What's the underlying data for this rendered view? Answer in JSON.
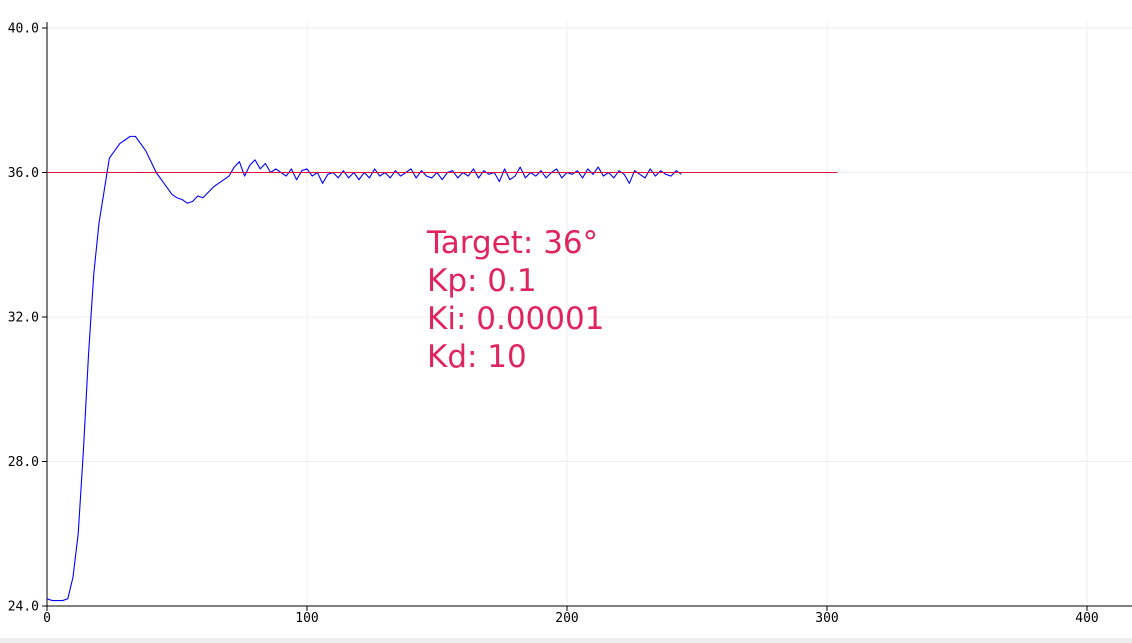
{
  "chart_data": {
    "type": "line",
    "xlim": [
      0,
      417
    ],
    "ylim": [
      24,
      40
    ],
    "xticks": [
      0,
      100,
      200,
      300,
      400
    ],
    "yticks": [
      {
        "value": 24,
        "label": "24.0"
      },
      {
        "value": 28,
        "label": "28.0"
      },
      {
        "value": 32,
        "label": "32.0"
      },
      {
        "value": 36,
        "label": "36.0"
      },
      {
        "value": 40,
        "label": "40.0"
      }
    ],
    "grid": true,
    "series": [
      {
        "color": "#0000ff",
        "x": [
          0,
          2,
          4,
          6,
          8,
          10,
          12,
          14,
          16,
          18,
          20,
          22,
          24,
          26,
          28,
          30,
          32,
          34,
          36,
          38,
          40,
          42,
          44,
          46,
          48,
          50,
          52,
          54,
          56,
          58,
          60,
          62,
          64,
          66,
          68,
          70,
          72,
          74,
          76,
          78,
          80,
          82,
          84,
          86,
          88,
          90,
          92,
          94,
          96,
          98,
          100,
          102,
          104,
          106,
          108,
          110,
          112,
          114,
          116,
          118,
          120,
          122,
          124,
          126,
          128,
          130,
          132,
          134,
          136,
          138,
          140,
          142,
          144,
          146,
          148,
          150,
          152,
          154,
          156,
          158,
          160,
          162,
          164,
          166,
          168,
          170,
          172,
          174,
          176,
          178,
          180,
          182,
          184,
          186,
          188,
          190,
          192,
          194,
          196,
          198,
          200,
          202,
          204,
          206,
          208,
          210,
          212,
          214,
          216,
          218,
          220,
          222,
          224,
          226,
          228,
          230,
          232,
          234,
          236,
          238,
          240,
          242,
          244
        ],
        "values": [
          24.2,
          24.15,
          24.15,
          24.15,
          24.2,
          24.8,
          26.0,
          28.3,
          31.0,
          33.2,
          34.6,
          35.5,
          36.4,
          36.6,
          36.8,
          36.9,
          37.0,
          37.0,
          36.8,
          36.6,
          36.3,
          36.0,
          35.8,
          35.6,
          35.4,
          35.3,
          35.25,
          35.15,
          35.2,
          35.35,
          35.3,
          35.45,
          35.6,
          35.7,
          35.8,
          35.9,
          36.15,
          36.3,
          35.9,
          36.2,
          36.35,
          36.1,
          36.25,
          36.0,
          36.1,
          36.0,
          35.9,
          36.1,
          35.8,
          36.05,
          36.1,
          35.9,
          36.0,
          35.7,
          35.95,
          36.0,
          35.85,
          36.05,
          35.85,
          36.0,
          35.8,
          36.0,
          35.85,
          36.1,
          35.9,
          36.0,
          35.85,
          36.05,
          35.9,
          36.0,
          36.1,
          35.85,
          36.05,
          35.9,
          35.85,
          36.0,
          35.8,
          36.0,
          36.05,
          35.85,
          36.0,
          35.9,
          36.1,
          35.85,
          36.05,
          35.95,
          36.0,
          35.75,
          36.1,
          35.8,
          35.9,
          36.15,
          35.85,
          36.0,
          35.9,
          36.05,
          35.85,
          36.0,
          36.1,
          35.85,
          36.0,
          35.95,
          36.05,
          35.85,
          36.1,
          35.95,
          36.15,
          35.9,
          36.0,
          35.85,
          36.05,
          35.95,
          35.7,
          36.05,
          35.95,
          35.85,
          36.1,
          35.9,
          36.05,
          35.95,
          35.9,
          36.05,
          35.95
        ]
      },
      {
        "color": "#dc143c",
        "x": [
          0,
          304
        ],
        "values": [
          36,
          36
        ]
      }
    ],
    "annotation_color": "#e0245e",
    "annotation": [
      "Target: 36°",
      "Kp: 0.1",
      "Ki: 0.00001",
      "Kd: 10"
    ]
  }
}
